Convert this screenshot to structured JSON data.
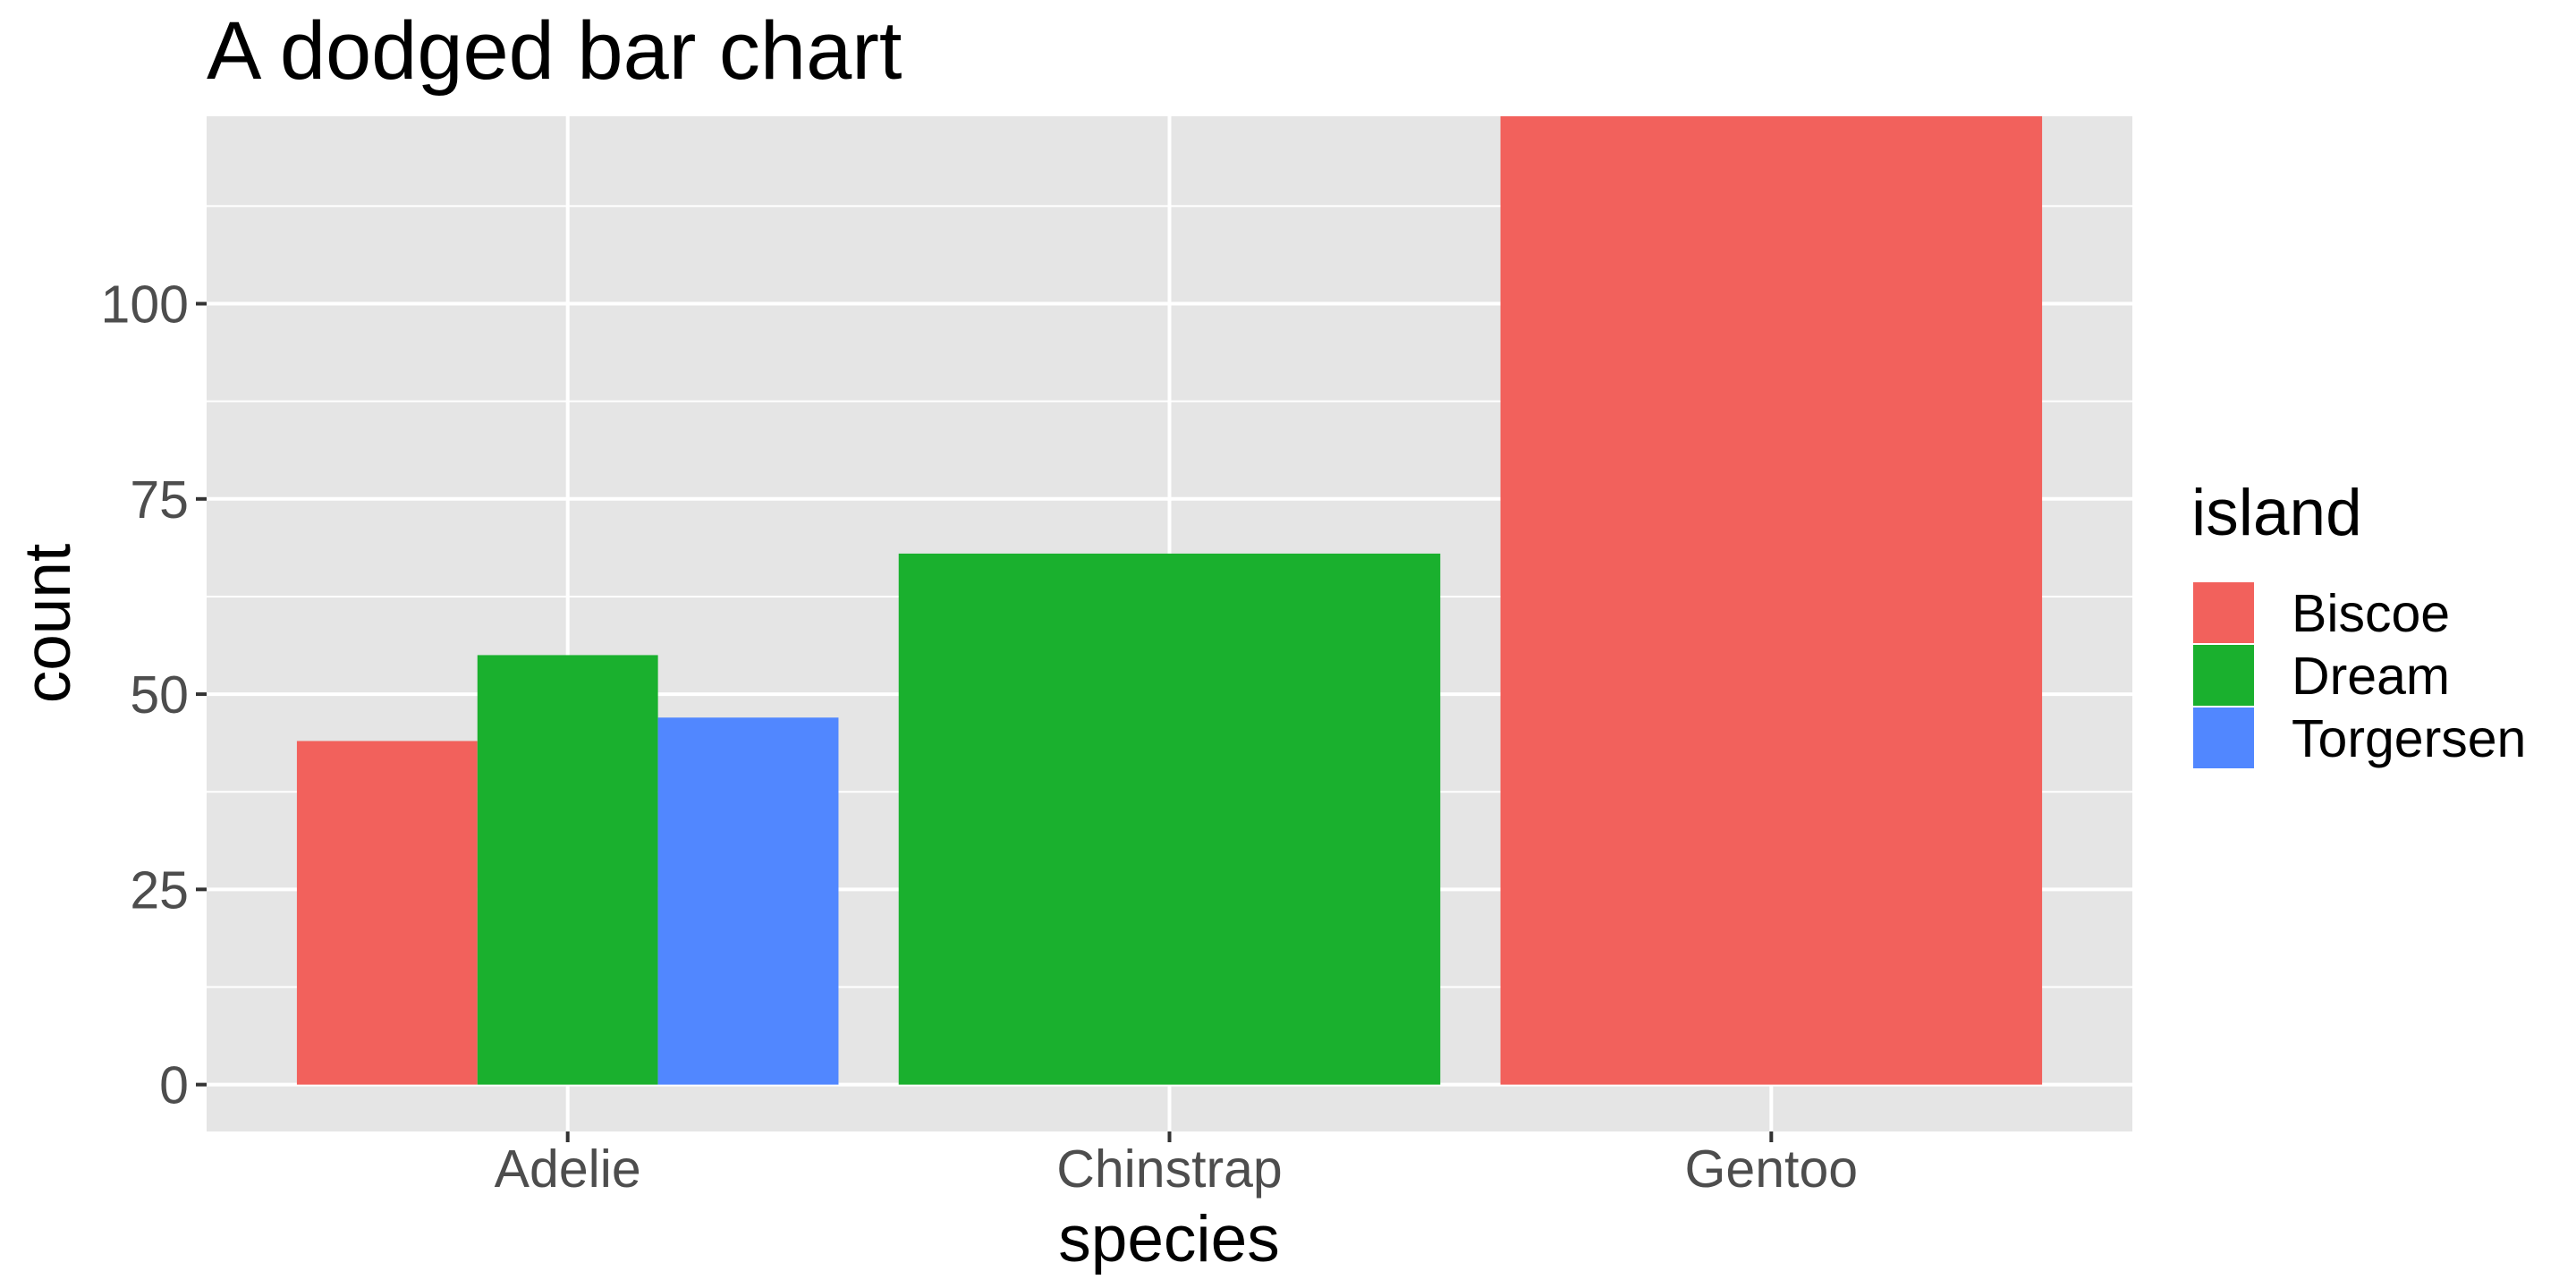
{
  "chart_data": {
    "type": "bar",
    "mode": "dodged",
    "title": "A dodged bar chart",
    "xlabel": "species",
    "ylabel": "count",
    "ylim": [
      -6,
      124
    ],
    "y_ticks": [
      0,
      25,
      50,
      75,
      100
    ],
    "categories": [
      "Adelie",
      "Chinstrap",
      "Gentoo"
    ],
    "series": [
      {
        "name": "Biscoe",
        "color": "#F2615C",
        "values": [
          44,
          null,
          124
        ]
      },
      {
        "name": "Dream",
        "color": "#1AB02E",
        "values": [
          55,
          68,
          null
        ]
      },
      {
        "name": "Torgersen",
        "color": "#5187FF",
        "values": [
          47,
          null,
          null
        ]
      }
    ],
    "legend": {
      "title": "island",
      "position": "right"
    },
    "grid": true,
    "panel_background": "#E5E5E5"
  }
}
